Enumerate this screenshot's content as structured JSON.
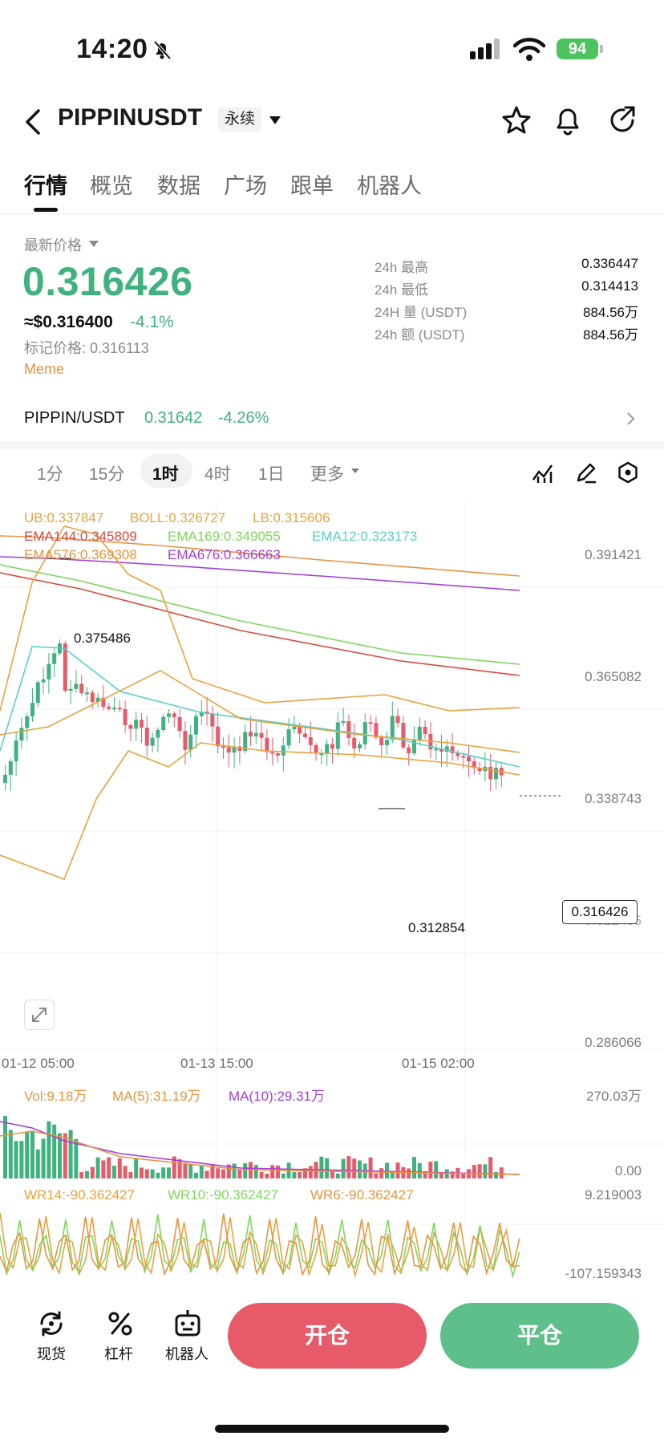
{
  "status_bar": {
    "time": "14:20",
    "battery": "94"
  },
  "header": {
    "symbol": "PIPPINUSDT",
    "contract_type": "永续"
  },
  "tabs": [
    {
      "label": "行情",
      "active": true
    },
    {
      "label": "概览"
    },
    {
      "label": "数据"
    },
    {
      "label": "广场"
    },
    {
      "label": "跟单"
    },
    {
      "label": "机器人"
    }
  ],
  "price": {
    "last_price_label": "最新价格",
    "last_price": "0.316426",
    "usd_price": "≈$0.316400",
    "change_pct": "-4.1%",
    "mark_price": "标记价格: 0.316113",
    "tag": "Meme"
  },
  "stats": [
    {
      "label": "24h  最高",
      "value": "0.336447"
    },
    {
      "label": "24h  最低",
      "value": "0.314413"
    },
    {
      "label": "24H  量 (USDT)",
      "value": "884.56万"
    },
    {
      "label": "24h  额 (USDT)",
      "value": "884.56万"
    }
  ],
  "spot": {
    "pair": "PIPPIN/USDT",
    "price": "0.31642",
    "change": "-4.26%"
  },
  "timeframes": [
    {
      "label": "1分"
    },
    {
      "label": "15分"
    },
    {
      "label": "1时",
      "active": true
    },
    {
      "label": "4时"
    },
    {
      "label": "1日"
    },
    {
      "label": "更多"
    }
  ],
  "indicators": {
    "boll": {
      "ub": "UB:0.337847",
      "boll": "BOLL:0.326727",
      "lb": "LB:0.315606"
    },
    "ema_row1": {
      "e144": "EMA144:0.345809",
      "e169": "EMA169:0.349055",
      "e12": "EMA12:0.323173"
    },
    "ema_row2": {
      "e576": "EMA576:0.369308",
      "e676": "EMA676:0.366663"
    },
    "vol": {
      "vol": "Vol:9.18万",
      "ma5": "MA(5):31.19万",
      "ma10": "MA(10):29.31万"
    },
    "wr": {
      "wr14": "WR14:-90.362427",
      "wr10": "WR10:-90.362427",
      "wr6": "WR6:-90.362427"
    }
  },
  "axes": {
    "price_ticks": [
      "0.391421",
      "0.365082",
      "0.338743",
      "0.312405",
      "0.286066"
    ],
    "time_ticks": [
      "01-12 05:00",
      "01-13 15:00",
      "01-15 02:00"
    ],
    "vol_ticks": [
      "270.03万",
      "0.00"
    ],
    "wr_ticks": [
      "9.219003",
      "-107.159343"
    ],
    "high_marker": "0.375486",
    "low_marker": "0.312854",
    "current_tag": "0.316426"
  },
  "bottom_nav": [
    {
      "label": "现货",
      "icon": "spot-icon"
    },
    {
      "label": "杠杆",
      "icon": "leverage-icon"
    },
    {
      "label": "机器人",
      "icon": "robot-icon"
    }
  ],
  "actions": {
    "open": "开仓",
    "close": "平仓"
  },
  "colors": {
    "up": "#3fb27f",
    "down": "#e75a69",
    "boll": "#e8a23c",
    "ema144": "#d94a42",
    "ema169": "#7fd65c",
    "ema12": "#57cfc9",
    "ema576": "#e8933f",
    "ema676": "#a23fd6"
  }
}
